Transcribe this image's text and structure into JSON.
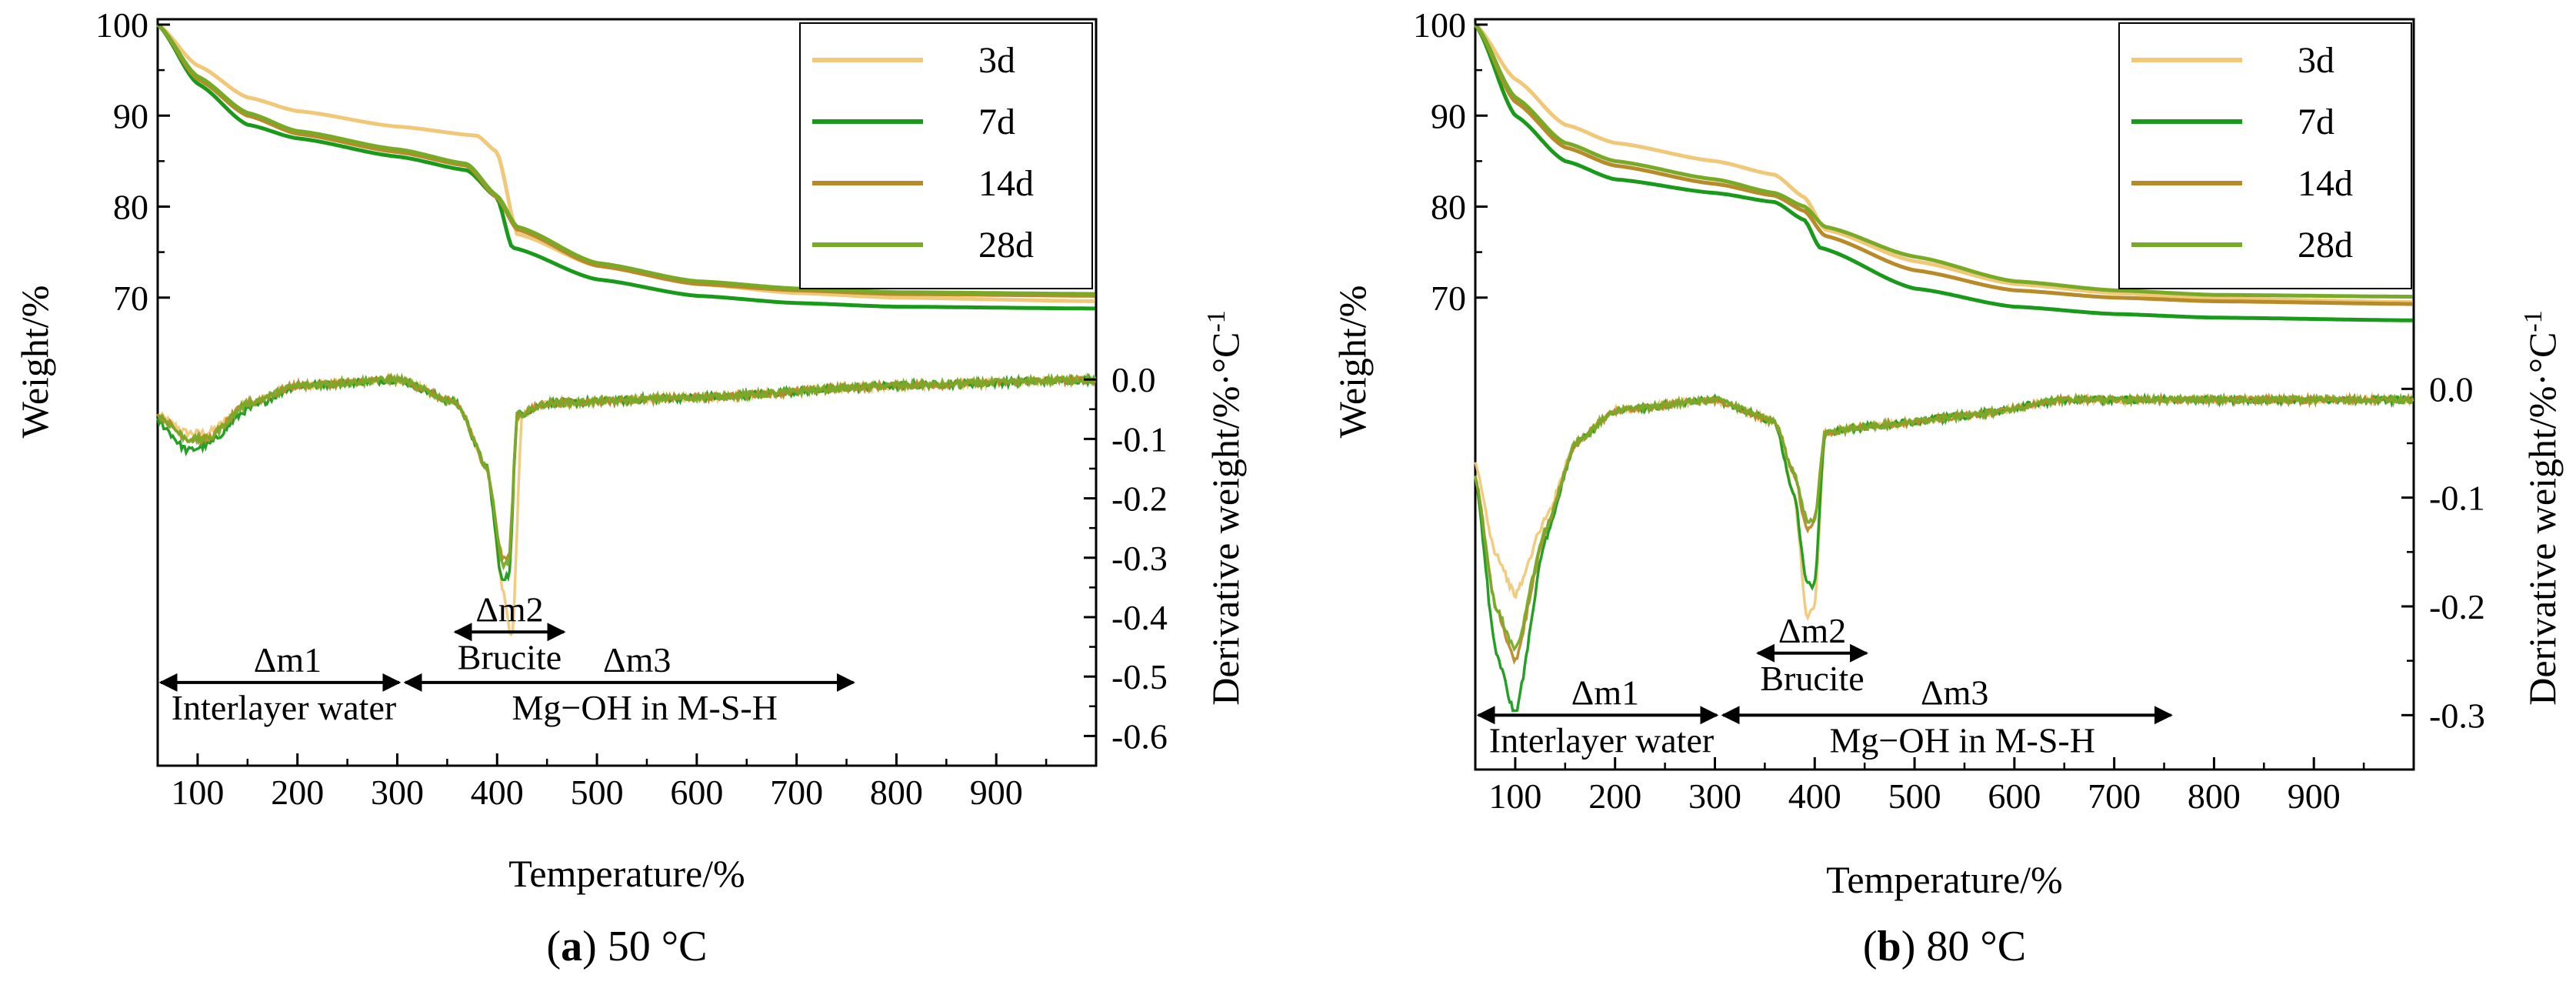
{
  "colors": {
    "3d": "#f0c878",
    "7d": "#1a9a1a",
    "14d": "#b88a28",
    "28d": "#78aa28"
  },
  "chart_data": [
    {
      "type": "line",
      "panel_label": "a",
      "caption": "50 °C",
      "xlabel": "Temperature/%",
      "ylabel": "Weight/%",
      "y2label": "Derivative weight/%·°C",
      "y2label_sup": "-1",
      "xlim": [
        60,
        1000
      ],
      "x_ticks": [
        100,
        200,
        300,
        400,
        500,
        600,
        700,
        800,
        900
      ],
      "y_ticks": [
        70,
        80,
        90,
        100
      ],
      "y2_ticks": [
        "0.0",
        "-0.1",
        "-0.2",
        "-0.3",
        "-0.4",
        "-0.5",
        "-0.6"
      ],
      "legend": {
        "position": "top-right",
        "entries": [
          "3d",
          "7d",
          "14d",
          "28d"
        ]
      },
      "tg_series": [
        {
          "name": "3d",
          "x": [
            60,
            100,
            150,
            200,
            300,
            380,
            400,
            420,
            500,
            600,
            700,
            800,
            1000
          ],
          "y": [
            100,
            95.5,
            92,
            90.5,
            88.8,
            87.8,
            86,
            77,
            73.5,
            71.5,
            70.5,
            70,
            69.6
          ]
        },
        {
          "name": "7d",
          "x": [
            60,
            100,
            150,
            200,
            300,
            370,
            400,
            415,
            500,
            600,
            700,
            800,
            1000
          ],
          "y": [
            100,
            93.5,
            89,
            87.5,
            85.5,
            84,
            81,
            75.5,
            72,
            70.2,
            69.4,
            69,
            68.8
          ]
        },
        {
          "name": "14d",
          "x": [
            60,
            100,
            150,
            200,
            300,
            370,
            400,
            420,
            500,
            600,
            700,
            800,
            1000
          ],
          "y": [
            100,
            94,
            90,
            88,
            86,
            84.5,
            81,
            77.5,
            73.5,
            71.5,
            70.8,
            70.4,
            70.2
          ]
        },
        {
          "name": "28d",
          "x": [
            60,
            100,
            150,
            200,
            300,
            370,
            400,
            420,
            500,
            600,
            700,
            800,
            1000
          ],
          "y": [
            100,
            94.3,
            90.3,
            88.3,
            86.3,
            84.7,
            81.2,
            77.8,
            73.8,
            71.8,
            71,
            70.6,
            70.4
          ]
        }
      ],
      "dtg_series": [
        {
          "name": "3d",
          "x": [
            60,
            90,
            110,
            150,
            200,
            300,
            360,
            390,
            405,
            415,
            425,
            450,
            600,
            800,
            1000
          ],
          "y": [
            -0.06,
            -0.09,
            -0.09,
            -0.04,
            -0.01,
            0.0,
            -0.04,
            -0.15,
            -0.35,
            -0.44,
            -0.06,
            -0.04,
            -0.03,
            -0.01,
            0.0
          ]
        },
        {
          "name": "7d",
          "x": [
            60,
            90,
            110,
            150,
            200,
            300,
            360,
            390,
            405,
            412,
            420,
            450,
            600,
            800,
            1000
          ],
          "y": [
            -0.07,
            -0.12,
            -0.11,
            -0.05,
            -0.01,
            0.0,
            -0.04,
            -0.15,
            -0.34,
            -0.33,
            -0.06,
            -0.04,
            -0.03,
            -0.01,
            0.0
          ]
        },
        {
          "name": "14d",
          "x": [
            60,
            90,
            110,
            150,
            200,
            300,
            360,
            390,
            405,
            412,
            420,
            450,
            600,
            800,
            1000
          ],
          "y": [
            -0.06,
            -0.1,
            -0.1,
            -0.04,
            -0.01,
            0.0,
            -0.04,
            -0.15,
            -0.3,
            -0.3,
            -0.06,
            -0.04,
            -0.03,
            -0.01,
            0.0
          ]
        },
        {
          "name": "28d",
          "x": [
            60,
            90,
            110,
            150,
            200,
            300,
            360,
            390,
            405,
            412,
            420,
            450,
            600,
            800,
            1000
          ],
          "y": [
            -0.06,
            -0.1,
            -0.1,
            -0.04,
            -0.01,
            0.0,
            -0.04,
            -0.15,
            -0.31,
            -0.31,
            -0.06,
            -0.04,
            -0.03,
            -0.01,
            0.0
          ]
        }
      ],
      "annotations": [
        {
          "label": "Δm1",
          "sublabel": "Interlayer water",
          "x_start": 60,
          "x_end": 305,
          "y2": -0.51
        },
        {
          "label": "Δm2",
          "sublabel": "Brucite",
          "x_start": 355,
          "x_end": 470,
          "y2": -0.425
        },
        {
          "label": "Δm3",
          "sublabel": "Mg−OH in M-S-H",
          "x_start": 305,
          "x_end": 760,
          "y2": -0.51
        }
      ]
    },
    {
      "type": "line",
      "panel_label": "b",
      "caption": "80 °C",
      "xlabel": "Temperature/%",
      "ylabel": "Weight/%",
      "y2label": "Derivative weight/%·°C",
      "y2label_sup": "-1",
      "xlim": [
        60,
        1000
      ],
      "x_ticks": [
        100,
        200,
        300,
        400,
        500,
        600,
        700,
        800,
        900
      ],
      "y_ticks": [
        70,
        80,
        90,
        100
      ],
      "y2_ticks": [
        "0.0",
        "-0.1",
        "-0.2",
        "-0.3"
      ],
      "legend": {
        "position": "top-right",
        "entries": [
          "3d",
          "7d",
          "14d",
          "28d"
        ]
      },
      "tg_series": [
        {
          "name": "3d",
          "x": [
            60,
            100,
            150,
            200,
            300,
            360,
            390,
            410,
            500,
            600,
            700,
            800,
            1000
          ],
          "y": [
            100,
            94,
            89,
            87,
            85,
            83.5,
            81,
            77.5,
            74,
            71.5,
            70.5,
            69.9,
            69.5
          ]
        },
        {
          "name": "7d",
          "x": [
            60,
            100,
            150,
            200,
            300,
            360,
            390,
            405,
            500,
            600,
            700,
            800,
            1000
          ],
          "y": [
            100,
            90,
            85,
            83,
            81.5,
            80.5,
            78.5,
            75.5,
            71,
            69,
            68.2,
            67.8,
            67.5
          ]
        },
        {
          "name": "14d",
          "x": [
            60,
            100,
            150,
            200,
            300,
            360,
            390,
            410,
            500,
            600,
            700,
            800,
            1000
          ],
          "y": [
            100,
            91.5,
            86.5,
            84.5,
            82.5,
            81.2,
            79.5,
            76.8,
            73,
            70.8,
            70,
            69.6,
            69.3
          ]
        },
        {
          "name": "28d",
          "x": [
            60,
            100,
            150,
            200,
            300,
            360,
            390,
            410,
            500,
            600,
            700,
            800,
            1000
          ],
          "y": [
            100,
            92,
            87,
            85,
            83,
            81.5,
            80,
            77.8,
            74.5,
            71.8,
            70.8,
            70.3,
            70.1
          ]
        }
      ],
      "dtg_series": [
        {
          "name": "3d",
          "x": [
            60,
            80,
            100,
            130,
            160,
            200,
            300,
            360,
            380,
            392,
            400,
            410,
            450,
            550,
            650,
            800,
            1000
          ],
          "y": [
            -0.07,
            -0.15,
            -0.19,
            -0.12,
            -0.05,
            -0.02,
            -0.01,
            -0.03,
            -0.1,
            -0.21,
            -0.2,
            -0.04,
            -0.035,
            -0.025,
            -0.01,
            -0.01,
            -0.01
          ]
        },
        {
          "name": "7d",
          "x": [
            60,
            80,
            100,
            130,
            160,
            200,
            300,
            360,
            380,
            392,
            400,
            410,
            450,
            550,
            650,
            800,
            1000
          ],
          "y": [
            -0.08,
            -0.24,
            -0.3,
            -0.14,
            -0.05,
            -0.02,
            -0.01,
            -0.03,
            -0.1,
            -0.18,
            -0.18,
            -0.04,
            -0.035,
            -0.025,
            -0.01,
            -0.01,
            -0.01
          ]
        },
        {
          "name": "14d",
          "x": [
            60,
            80,
            100,
            130,
            160,
            200,
            300,
            360,
            380,
            392,
            400,
            410,
            450,
            550,
            650,
            800,
            1000
          ],
          "y": [
            -0.08,
            -0.2,
            -0.25,
            -0.13,
            -0.05,
            -0.02,
            -0.01,
            -0.03,
            -0.08,
            -0.13,
            -0.12,
            -0.04,
            -0.035,
            -0.025,
            -0.01,
            -0.01,
            -0.01
          ]
        },
        {
          "name": "28d",
          "x": [
            60,
            80,
            100,
            130,
            160,
            200,
            300,
            360,
            380,
            392,
            400,
            410,
            450,
            550,
            650,
            800,
            1000
          ],
          "y": [
            -0.08,
            -0.2,
            -0.24,
            -0.13,
            -0.05,
            -0.02,
            -0.01,
            -0.03,
            -0.08,
            -0.12,
            -0.12,
            -0.04,
            -0.035,
            -0.025,
            -0.01,
            -0.01,
            -0.01
          ]
        }
      ],
      "annotations": [
        {
          "label": "Δm1",
          "sublabel": "Interlayer water",
          "x_start": 60,
          "x_end": 305,
          "y2": -0.3
        },
        {
          "label": "Δm2",
          "sublabel": "Brucite",
          "x_start": 340,
          "x_end": 455,
          "y2": -0.243
        },
        {
          "label": "Δm3",
          "sublabel": "Mg−OH in M-S-H",
          "x_start": 305,
          "x_end": 760,
          "y2": -0.3
        }
      ]
    }
  ]
}
